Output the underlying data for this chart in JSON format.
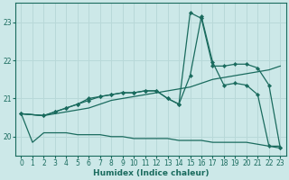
{
  "xlabel": "Humidex (Indice chaleur)",
  "ylabel": "",
  "xlim": [
    -0.5,
    23.5
  ],
  "ylim": [
    19.5,
    23.5
  ],
  "yticks": [
    20,
    21,
    22,
    23
  ],
  "xticks": [
    0,
    1,
    2,
    3,
    4,
    5,
    6,
    7,
    8,
    9,
    10,
    11,
    12,
    13,
    14,
    15,
    16,
    17,
    18,
    19,
    20,
    21,
    22,
    23
  ],
  "bg_color": "#cce8e8",
  "line_color": "#1a6b5e",
  "grid_color": "#b8d8d8",
  "lines": [
    {
      "x": [
        0,
        1,
        2,
        3,
        4,
        5,
        6,
        7,
        8,
        9,
        10,
        11,
        12,
        13,
        14,
        15,
        16,
        17,
        18,
        19,
        20,
        21,
        22,
        23
      ],
      "y": [
        20.6,
        19.85,
        20.1,
        20.1,
        20.1,
        20.05,
        20.05,
        20.05,
        20.0,
        20.0,
        19.95,
        19.95,
        19.95,
        19.95,
        19.9,
        19.9,
        19.9,
        19.85,
        19.85,
        19.85,
        19.85,
        19.8,
        19.75,
        19.75
      ],
      "marker": false
    },
    {
      "x": [
        0,
        2,
        3,
        4,
        5,
        6,
        7,
        8,
        9,
        10,
        11,
        12,
        13,
        14,
        15,
        16,
        17,
        18,
        19,
        20,
        21,
        22,
        23
      ],
      "y": [
        20.6,
        20.55,
        20.6,
        20.65,
        20.7,
        20.75,
        20.85,
        20.95,
        21.0,
        21.05,
        21.1,
        21.15,
        21.2,
        21.25,
        21.3,
        21.4,
        21.5,
        21.55,
        21.6,
        21.65,
        21.7,
        21.75,
        21.85
      ],
      "marker": false
    },
    {
      "x": [
        0,
        2,
        3,
        4,
        5,
        6,
        7,
        8,
        9,
        10,
        11,
        12,
        13,
        14,
        15,
        16,
        17,
        18,
        19,
        20,
        21,
        22,
        23
      ],
      "y": [
        20.6,
        20.55,
        20.65,
        20.75,
        20.85,
        20.95,
        21.05,
        21.1,
        21.15,
        21.15,
        21.2,
        21.2,
        21.0,
        20.85,
        21.6,
        23.15,
        21.95,
        21.35,
        21.4,
        21.35,
        21.1,
        19.75,
        19.7
      ],
      "marker": true
    },
    {
      "x": [
        0,
        2,
        3,
        4,
        5,
        6,
        7,
        8,
        9,
        10,
        11,
        12,
        13,
        14,
        15,
        16,
        17,
        18,
        19,
        20,
        21,
        22,
        23
      ],
      "y": [
        20.6,
        20.55,
        20.65,
        20.75,
        20.85,
        21.0,
        21.05,
        21.1,
        21.15,
        21.15,
        21.2,
        21.2,
        21.0,
        20.85,
        23.25,
        23.1,
        21.85,
        21.85,
        21.9,
        21.9,
        21.8,
        21.35,
        19.7
      ],
      "marker": true
    }
  ]
}
